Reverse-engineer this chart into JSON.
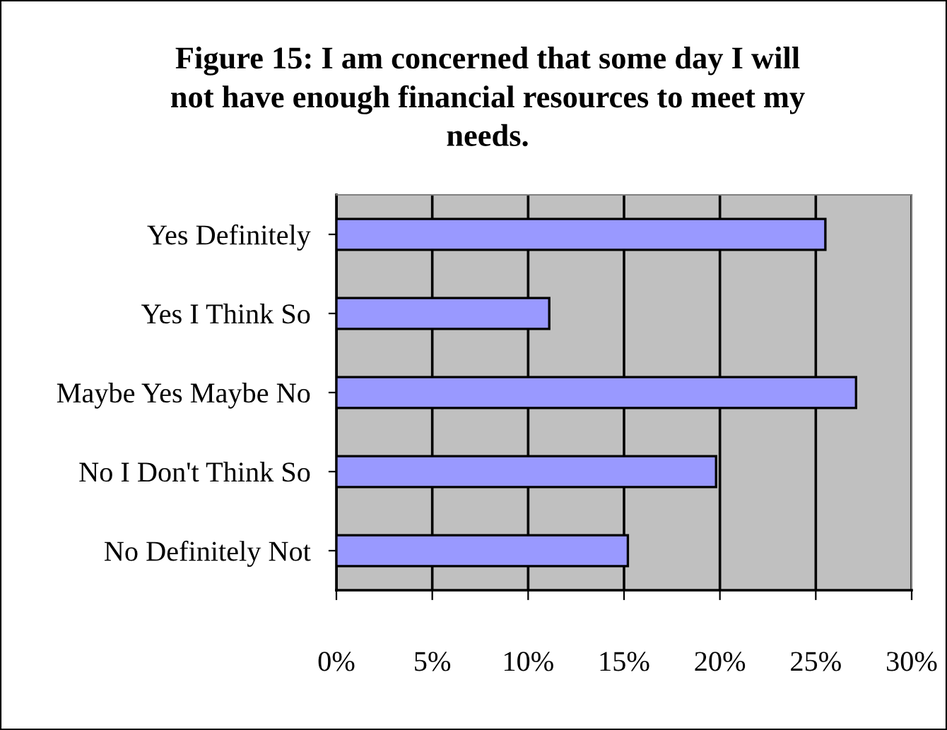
{
  "chart_data": {
    "type": "bar",
    "orientation": "horizontal",
    "title": "Figure 15: I am concerned that some day I will not have enough financial resources to meet my needs.",
    "categories": [
      "Yes Definitely",
      "Yes I Think So",
      "Maybe Yes Maybe No",
      "No I Don't Think So",
      "No Definitely Not"
    ],
    "values": [
      25.5,
      11.1,
      27.1,
      19.8,
      15.2
    ],
    "color": "#9999ff",
    "xlim": [
      0,
      30
    ],
    "xticks": [
      {
        "value": 0,
        "label": "0%"
      },
      {
        "value": 5,
        "label": "5%"
      },
      {
        "value": 10,
        "label": "10%"
      },
      {
        "value": 15,
        "label": "15%"
      },
      {
        "value": 20,
        "label": "20%"
      },
      {
        "value": 25,
        "label": "25%"
      },
      {
        "value": 30,
        "label": "30%"
      }
    ],
    "grid": "x",
    "legend": false
  }
}
